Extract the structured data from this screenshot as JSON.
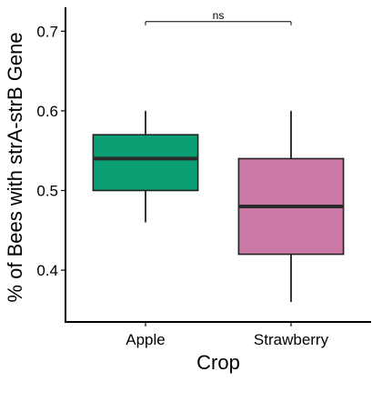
{
  "chart_data": {
    "type": "box",
    "xlabel": "Crop",
    "ylabel": "% of Bees with strA-strB Gene",
    "ylim": [
      0.335,
      0.73
    ],
    "yticks": [
      0.4,
      0.5,
      0.6,
      0.7
    ],
    "ytick_labels": [
      "0.4",
      "0.5",
      "0.6",
      "0.7"
    ],
    "categories": [
      "Apple",
      "Strawberry"
    ],
    "boxes": [
      {
        "category": "Apple",
        "min": 0.46,
        "q1": 0.5,
        "median": 0.54,
        "q3": 0.57,
        "max": 0.6,
        "color": "#0b9e73"
      },
      {
        "category": "Strawberry",
        "min": 0.36,
        "q1": 0.42,
        "median": 0.48,
        "q3": 0.54,
        "max": 0.6,
        "color": "#cc79a7"
      }
    ],
    "significance": {
      "label": "ns",
      "between": [
        "Apple",
        "Strawberry"
      ],
      "y": 0.712
    },
    "grid": false,
    "legend": "none"
  }
}
